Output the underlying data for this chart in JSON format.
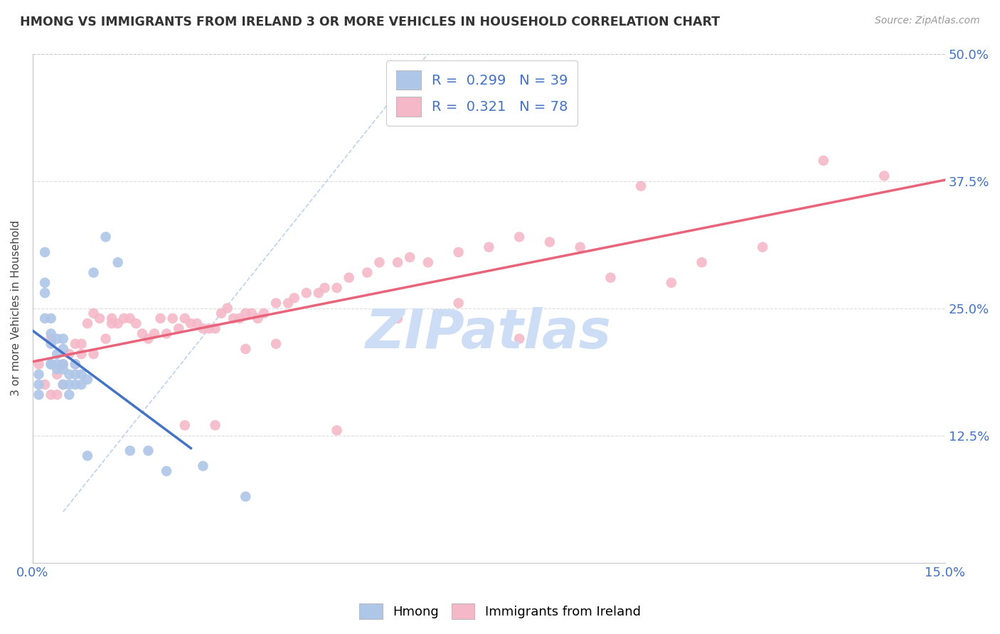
{
  "title": "HMONG VS IMMIGRANTS FROM IRELAND 3 OR MORE VEHICLES IN HOUSEHOLD CORRELATION CHART",
  "source_text": "Source: ZipAtlas.com",
  "ylabel": "3 or more Vehicles in Household",
  "x_min": 0.0,
  "x_max": 0.15,
  "y_min": 0.0,
  "y_max": 0.5,
  "color_hmong": "#aec6e8",
  "color_ireland": "#f4b8c8",
  "color_hmong_line": "#4472c4",
  "color_ireland_line": "#e8647a",
  "color_tick": "#4472c4",
  "color_r_value": "#4472c4",
  "watermark_text": "ZIPatlas",
  "watermark_color": "#ccddf5",
  "hmong_x": [
    0.001,
    0.001,
    0.001,
    0.002,
    0.002,
    0.002,
    0.002,
    0.003,
    0.003,
    0.003,
    0.003,
    0.003,
    0.004,
    0.004,
    0.004,
    0.004,
    0.005,
    0.005,
    0.005,
    0.005,
    0.005,
    0.006,
    0.006,
    0.006,
    0.007,
    0.007,
    0.007,
    0.008,
    0.008,
    0.009,
    0.009,
    0.01,
    0.012,
    0.014,
    0.016,
    0.019,
    0.022,
    0.028,
    0.035
  ],
  "hmong_y": [
    0.185,
    0.175,
    0.165,
    0.275,
    0.265,
    0.305,
    0.24,
    0.24,
    0.225,
    0.215,
    0.195,
    0.195,
    0.22,
    0.205,
    0.195,
    0.19,
    0.22,
    0.21,
    0.195,
    0.19,
    0.175,
    0.185,
    0.175,
    0.165,
    0.195,
    0.185,
    0.175,
    0.185,
    0.175,
    0.18,
    0.105,
    0.285,
    0.32,
    0.295,
    0.11,
    0.11,
    0.09,
    0.095,
    0.065
  ],
  "ireland_x": [
    0.001,
    0.002,
    0.003,
    0.003,
    0.004,
    0.004,
    0.005,
    0.005,
    0.006,
    0.007,
    0.007,
    0.008,
    0.008,
    0.009,
    0.01,
    0.01,
    0.011,
    0.012,
    0.013,
    0.013,
    0.014,
    0.015,
    0.016,
    0.017,
    0.018,
    0.019,
    0.02,
    0.021,
    0.022,
    0.023,
    0.024,
    0.025,
    0.026,
    0.027,
    0.028,
    0.029,
    0.03,
    0.031,
    0.032,
    0.033,
    0.034,
    0.035,
    0.036,
    0.037,
    0.038,
    0.04,
    0.042,
    0.043,
    0.045,
    0.047,
    0.048,
    0.05,
    0.052,
    0.055,
    0.057,
    0.06,
    0.062,
    0.065,
    0.07,
    0.075,
    0.08,
    0.085,
    0.09,
    0.095,
    0.1,
    0.105,
    0.11,
    0.12,
    0.13,
    0.14,
    0.025,
    0.03,
    0.035,
    0.04,
    0.05,
    0.06,
    0.07,
    0.08
  ],
  "ireland_y": [
    0.195,
    0.175,
    0.22,
    0.165,
    0.185,
    0.165,
    0.195,
    0.175,
    0.205,
    0.215,
    0.195,
    0.205,
    0.215,
    0.235,
    0.245,
    0.205,
    0.24,
    0.22,
    0.24,
    0.235,
    0.235,
    0.24,
    0.24,
    0.235,
    0.225,
    0.22,
    0.225,
    0.24,
    0.225,
    0.24,
    0.23,
    0.24,
    0.235,
    0.235,
    0.23,
    0.23,
    0.23,
    0.245,
    0.25,
    0.24,
    0.24,
    0.245,
    0.245,
    0.24,
    0.245,
    0.255,
    0.255,
    0.26,
    0.265,
    0.265,
    0.27,
    0.27,
    0.28,
    0.285,
    0.295,
    0.295,
    0.3,
    0.295,
    0.305,
    0.31,
    0.32,
    0.315,
    0.31,
    0.28,
    0.37,
    0.275,
    0.295,
    0.31,
    0.395,
    0.38,
    0.135,
    0.135,
    0.21,
    0.215,
    0.13,
    0.24,
    0.255,
    0.22
  ]
}
